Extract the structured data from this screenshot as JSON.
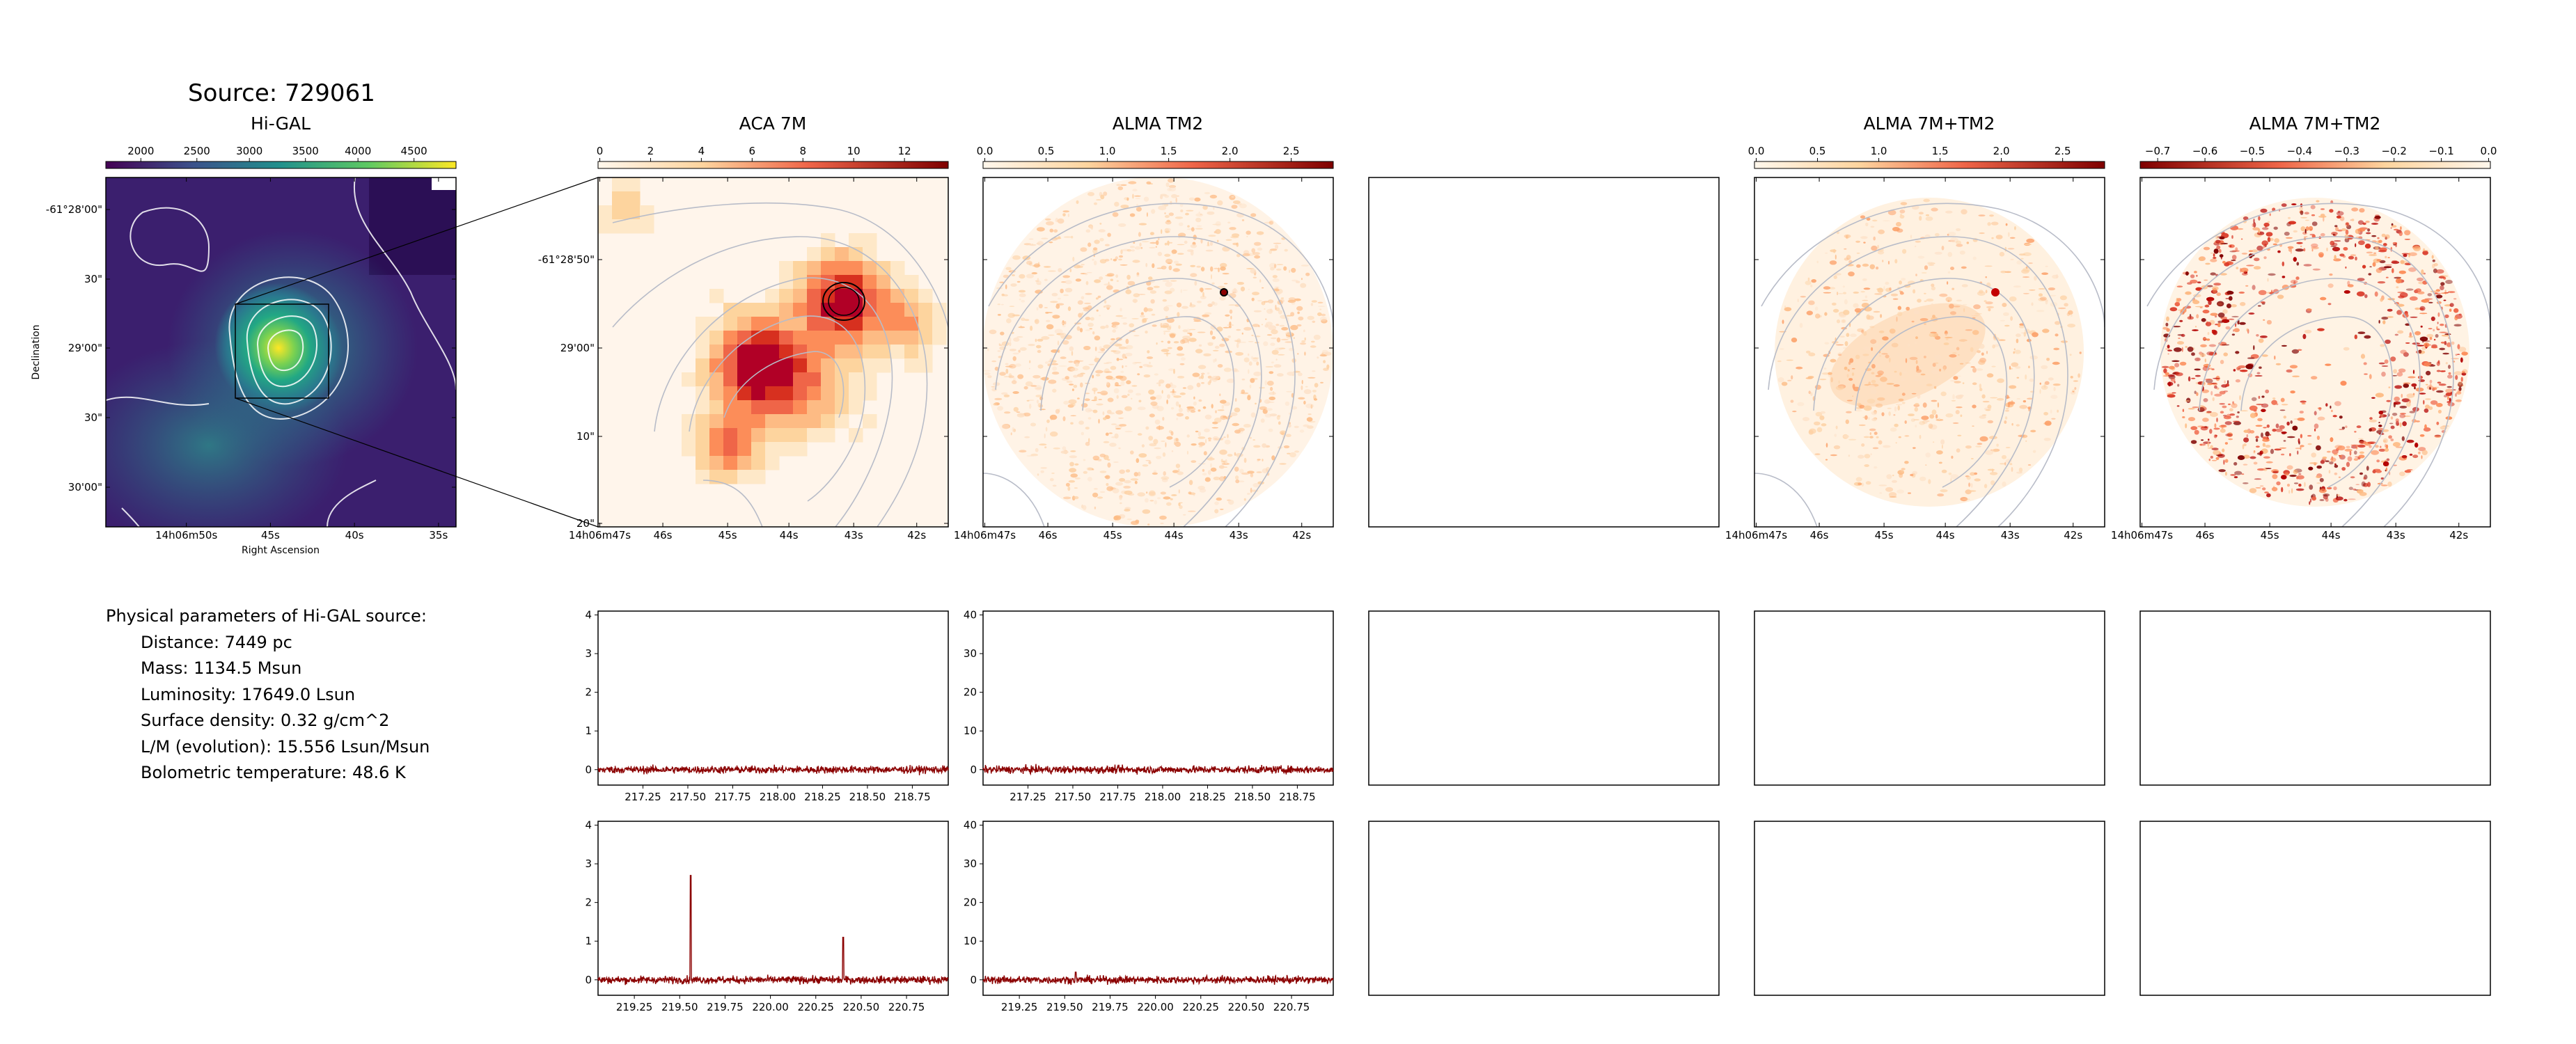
{
  "header": {
    "source_title": "Source: 729061"
  },
  "panels": {
    "higal": {
      "title": "Hi-GAL",
      "colorbar_ticks": [
        "2000",
        "2500",
        "3000",
        "3500",
        "4000",
        "4500"
      ],
      "y_ticks": [
        "-61°28'00\"",
        "30\"",
        "29'00\"",
        "30\"",
        "30'00\""
      ],
      "x_ticks": [
        "14h06m50s",
        "45s",
        "40s",
        "35s"
      ],
      "xlabel": "Right Ascension",
      "ylabel": "Declination"
    },
    "aca7m": {
      "title": "ACA 7M",
      "colorbar_ticks": [
        "0",
        "2",
        "4",
        "6",
        "8",
        "10",
        "12"
      ],
      "y_ticks": [
        "-61°28'50\"",
        "29'00\"",
        "10\"",
        "20\""
      ],
      "x_ticks": [
        "14h06m47s",
        "46s",
        "45s",
        "44s",
        "43s",
        "42s"
      ]
    },
    "tm2": {
      "title": "ALMA TM2",
      "colorbar_ticks": [
        "0.0",
        "0.5",
        "1.0",
        "1.5",
        "2.0",
        "2.5"
      ],
      "x_ticks": [
        "14h06m47s",
        "46s",
        "45s",
        "44s",
        "43s",
        "42s"
      ]
    },
    "combo": {
      "title": "ALMA 7M+TM2",
      "colorbar_ticks": [
        "0.0",
        "0.5",
        "1.0",
        "1.5",
        "2.0",
        "2.5"
      ],
      "x_ticks": [
        "14h06m47s",
        "46s",
        "45s",
        "44s",
        "43s",
        "42s"
      ]
    },
    "residual": {
      "title": "ALMA 7M+TM2",
      "colorbar_ticks": [
        "−0.7",
        "−0.6",
        "−0.5",
        "−0.4",
        "−0.3",
        "−0.2",
        "−0.1",
        "0.0"
      ],
      "x_ticks": [
        "14h06m47s",
        "46s",
        "45s",
        "44s",
        "43s",
        "42s"
      ]
    }
  },
  "params": {
    "heading": "Physical parameters of Hi-GAL source:",
    "lines": [
      "Distance: 7449 pc",
      "Mass: 1134.5 Msun",
      "Luminosity: 17649.0 Lsun",
      "Surface density: 0.32 g/cm^2",
      "L/M (evolution): 15.556 Lsun/Msun",
      "Bolometric temperature: 48.6 K"
    ]
  },
  "colors": {
    "spectrum": "#8b0000",
    "contour": "#b8bcc8",
    "higal_bg": "#3b1f6e"
  },
  "chart_data": [
    {
      "type": "line",
      "panel": "aca7m_spw1",
      "x_ticks": [
        217.25,
        217.5,
        217.75,
        218.0,
        218.25,
        218.5,
        218.75
      ],
      "xlim": [
        217.0,
        218.95
      ],
      "ylim": [
        -0.4,
        4.1
      ],
      "y_ticks": [
        0,
        1,
        2,
        3,
        4
      ],
      "noise": 0.07,
      "peaks": []
    },
    {
      "type": "line",
      "panel": "tm2_spw1",
      "x_ticks": [
        217.25,
        217.5,
        217.75,
        218.0,
        218.25,
        218.5,
        218.75
      ],
      "xlim": [
        217.0,
        218.95
      ],
      "ylim": [
        -4,
        41
      ],
      "y_ticks": [
        0,
        10,
        20,
        30,
        40
      ],
      "noise": 0.7,
      "peaks": []
    },
    {
      "type": "line",
      "panel": "aca7m_spw2",
      "x_ticks": [
        219.25,
        219.5,
        219.75,
        220.0,
        220.25,
        220.5,
        220.75
      ],
      "xlim": [
        219.05,
        220.98
      ],
      "ylim": [
        -0.4,
        4.1
      ],
      "y_ticks": [
        0,
        1,
        2,
        3,
        4
      ],
      "noise": 0.07,
      "peaks": [
        [
          219.56,
          2.7
        ],
        [
          220.4,
          1.1
        ]
      ]
    },
    {
      "type": "line",
      "panel": "tm2_spw2",
      "x_ticks": [
        219.25,
        219.5,
        219.75,
        220.0,
        220.25,
        220.5,
        220.75
      ],
      "xlim": [
        219.05,
        220.98
      ],
      "ylim": [
        -4,
        41
      ],
      "y_ticks": [
        0,
        10,
        20,
        30,
        40
      ],
      "noise": 0.7,
      "peaks": [
        [
          219.56,
          2.0
        ]
      ]
    }
  ]
}
